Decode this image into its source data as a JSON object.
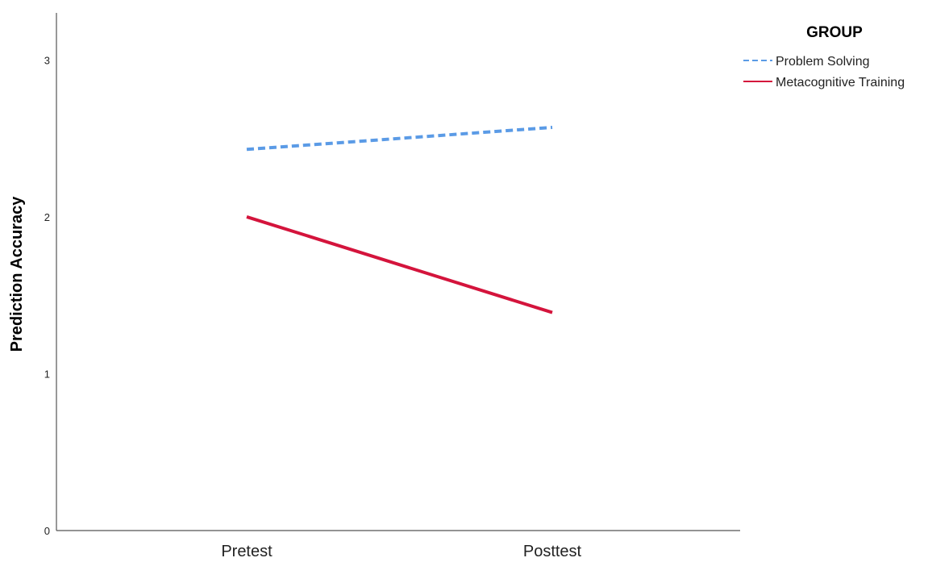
{
  "chart_data": {
    "type": "line",
    "categories": [
      "Pretest",
      "Posttest"
    ],
    "ylabel": "Prediction Accuracy",
    "xlabel": "",
    "ylim": [
      0,
      3.3
    ],
    "yticks": [
      0,
      1,
      2,
      3
    ],
    "grid": false,
    "legend": {
      "title": "GROUP",
      "placement": "top-right"
    },
    "series": [
      {
        "name": "Problem Solving",
        "values": [
          2.43,
          2.57
        ],
        "color": "#5b9be6",
        "style": "dashed"
      },
      {
        "name": "Metacognitive Training",
        "values": [
          2.0,
          1.39
        ],
        "color": "#d4143c",
        "style": "solid"
      }
    ]
  }
}
